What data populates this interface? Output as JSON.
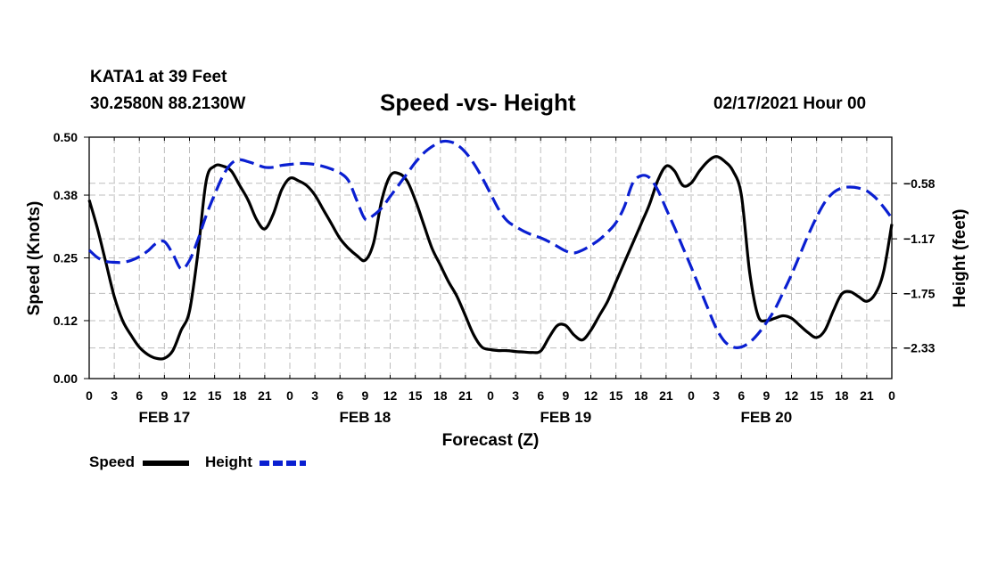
{
  "header": {
    "station": "KATA1 at 39 Feet",
    "coords": "30.2580N 88.2130W",
    "title": "Speed -vs- Height",
    "date": "02/17/2021 Hour 00"
  },
  "chart_data": {
    "type": "line",
    "title": "Speed -vs- Height",
    "xlabel": "Forecast (Z)",
    "ylabel_left": "Speed (Knots)",
    "ylabel_right": "Height (feet)",
    "x_range": [
      0,
      96
    ],
    "x_tick_step_hours": 3,
    "x_tick_labels": [
      "0",
      "3",
      "6",
      "9",
      "12",
      "15",
      "18",
      "21",
      "0",
      "3",
      "6",
      "9",
      "12",
      "15",
      "18",
      "21",
      "0",
      "3",
      "6",
      "9",
      "12",
      "15",
      "18",
      "21",
      "0",
      "3",
      "6",
      "9",
      "12",
      "15",
      "18",
      "21",
      "0"
    ],
    "date_labels": [
      {
        "label": "FEB 17",
        "hour": 9
      },
      {
        "label": "FEB 18",
        "hour": 33
      },
      {
        "label": "FEB 19",
        "hour": 57
      },
      {
        "label": "FEB 20",
        "hour": 81
      }
    ],
    "left_axis": {
      "range": [
        0,
        0.5
      ],
      "ticks": [
        0.0,
        0.12,
        0.25,
        0.38,
        0.5
      ],
      "tick_labels": [
        "0.00",
        "0.12",
        "0.25",
        "0.38",
        "0.50"
      ]
    },
    "right_axis": {
      "range": [
        -2.655,
        -0.09
      ],
      "ticks": [
        -2.33,
        -1.75,
        -1.17,
        -0.58
      ],
      "tick_labels": [
        "−2.33",
        "−1.75",
        "−1.17",
        "−0.58"
      ]
    },
    "grid": true,
    "series": [
      {
        "name": "Speed",
        "axis": "left",
        "color": "#000000",
        "dash": "solid",
        "points": [
          [
            0,
            0.37
          ],
          [
            1,
            0.31
          ],
          [
            2,
            0.24
          ],
          [
            3,
            0.17
          ],
          [
            4,
            0.12
          ],
          [
            5,
            0.09
          ],
          [
            6,
            0.065
          ],
          [
            7,
            0.05
          ],
          [
            8,
            0.042
          ],
          [
            9,
            0.042
          ],
          [
            10,
            0.058
          ],
          [
            11,
            0.1
          ],
          [
            12,
            0.14
          ],
          [
            13,
            0.26
          ],
          [
            14,
            0.41
          ],
          [
            15,
            0.44
          ],
          [
            16,
            0.44
          ],
          [
            17,
            0.43
          ],
          [
            18,
            0.4
          ],
          [
            19,
            0.37
          ],
          [
            20,
            0.33
          ],
          [
            21,
            0.31
          ],
          [
            22,
            0.34
          ],
          [
            23,
            0.39
          ],
          [
            24,
            0.415
          ],
          [
            25,
            0.41
          ],
          [
            26,
            0.4
          ],
          [
            27,
            0.38
          ],
          [
            28,
            0.35
          ],
          [
            29,
            0.32
          ],
          [
            30,
            0.29
          ],
          [
            31,
            0.27
          ],
          [
            32,
            0.255
          ],
          [
            33,
            0.245
          ],
          [
            34,
            0.28
          ],
          [
            35,
            0.37
          ],
          [
            36,
            0.42
          ],
          [
            37,
            0.425
          ],
          [
            38,
            0.41
          ],
          [
            39,
            0.37
          ],
          [
            40,
            0.32
          ],
          [
            41,
            0.27
          ],
          [
            42,
            0.235
          ],
          [
            43,
            0.2
          ],
          [
            44,
            0.17
          ],
          [
            45,
            0.13
          ],
          [
            46,
            0.09
          ],
          [
            47,
            0.065
          ],
          [
            48,
            0.06
          ],
          [
            49,
            0.058
          ],
          [
            50,
            0.058
          ],
          [
            51,
            0.056
          ],
          [
            52,
            0.055
          ],
          [
            53,
            0.054
          ],
          [
            54,
            0.057
          ],
          [
            55,
            0.085
          ],
          [
            56,
            0.11
          ],
          [
            57,
            0.11
          ],
          [
            58,
            0.09
          ],
          [
            59,
            0.08
          ],
          [
            60,
            0.1
          ],
          [
            61,
            0.13
          ],
          [
            62,
            0.16
          ],
          [
            63,
            0.2
          ],
          [
            64,
            0.24
          ],
          [
            65,
            0.28
          ],
          [
            66,
            0.32
          ],
          [
            67,
            0.36
          ],
          [
            68,
            0.41
          ],
          [
            69,
            0.44
          ],
          [
            70,
            0.43
          ],
          [
            71,
            0.4
          ],
          [
            72,
            0.405
          ],
          [
            73,
            0.43
          ],
          [
            74,
            0.45
          ],
          [
            75,
            0.46
          ],
          [
            76,
            0.45
          ],
          [
            77,
            0.43
          ],
          [
            78,
            0.38
          ],
          [
            79,
            0.22
          ],
          [
            80,
            0.13
          ],
          [
            81,
            0.12
          ],
          [
            82,
            0.125
          ],
          [
            83,
            0.13
          ],
          [
            84,
            0.125
          ],
          [
            85,
            0.11
          ],
          [
            86,
            0.095
          ],
          [
            87,
            0.085
          ],
          [
            88,
            0.1
          ],
          [
            89,
            0.14
          ],
          [
            90,
            0.175
          ],
          [
            91,
            0.18
          ],
          [
            92,
            0.17
          ],
          [
            93,
            0.16
          ],
          [
            94,
            0.175
          ],
          [
            95,
            0.22
          ],
          [
            96,
            0.32
          ]
        ]
      },
      {
        "name": "Height",
        "axis": "right",
        "color": "#0a1fd1",
        "dash": "dashed",
        "points": [
          [
            0,
            -1.29
          ],
          [
            1,
            -1.37
          ],
          [
            2,
            -1.41
          ],
          [
            3,
            -1.42
          ],
          [
            4,
            -1.42
          ],
          [
            5,
            -1.4
          ],
          [
            6,
            -1.36
          ],
          [
            7,
            -1.3
          ],
          [
            8,
            -1.22
          ],
          [
            9,
            -1.2
          ],
          [
            10,
            -1.33
          ],
          [
            11,
            -1.49
          ],
          [
            12,
            -1.4
          ],
          [
            13,
            -1.18
          ],
          [
            14,
            -0.92
          ],
          [
            15,
            -0.7
          ],
          [
            16,
            -0.5
          ],
          [
            17,
            -0.37
          ],
          [
            18,
            -0.33
          ],
          [
            19,
            -0.35
          ],
          [
            20,
            -0.38
          ],
          [
            21,
            -0.41
          ],
          [
            22,
            -0.41
          ],
          [
            23,
            -0.39
          ],
          [
            24,
            -0.38
          ],
          [
            25,
            -0.37
          ],
          [
            26,
            -0.37
          ],
          [
            27,
            -0.38
          ],
          [
            28,
            -0.4
          ],
          [
            29,
            -0.43
          ],
          [
            30,
            -0.47
          ],
          [
            31,
            -0.55
          ],
          [
            32,
            -0.76
          ],
          [
            33,
            -0.96
          ],
          [
            34,
            -0.92
          ],
          [
            35,
            -0.84
          ],
          [
            36,
            -0.72
          ],
          [
            37,
            -0.6
          ],
          [
            38,
            -0.48
          ],
          [
            39,
            -0.36
          ],
          [
            40,
            -0.26
          ],
          [
            41,
            -0.19
          ],
          [
            42,
            -0.14
          ],
          [
            43,
            -0.135
          ],
          [
            44,
            -0.17
          ],
          [
            45,
            -0.25
          ],
          [
            46,
            -0.37
          ],
          [
            47,
            -0.52
          ],
          [
            48,
            -0.69
          ],
          [
            49,
            -0.86
          ],
          [
            50,
            -0.98
          ],
          [
            51,
            -1.04
          ],
          [
            52,
            -1.09
          ],
          [
            53,
            -1.13
          ],
          [
            54,
            -1.16
          ],
          [
            55,
            -1.2
          ],
          [
            56,
            -1.25
          ],
          [
            57,
            -1.3
          ],
          [
            58,
            -1.32
          ],
          [
            59,
            -1.29
          ],
          [
            60,
            -1.24
          ],
          [
            61,
            -1.18
          ],
          [
            62,
            -1.1
          ],
          [
            63,
            -1.0
          ],
          [
            64,
            -0.83
          ],
          [
            65,
            -0.58
          ],
          [
            66,
            -0.5
          ],
          [
            67,
            -0.52
          ],
          [
            68,
            -0.65
          ],
          [
            69,
            -0.85
          ],
          [
            70,
            -1.05
          ],
          [
            71,
            -1.26
          ],
          [
            72,
            -1.47
          ],
          [
            73,
            -1.69
          ],
          [
            74,
            -1.91
          ],
          [
            75,
            -2.12
          ],
          [
            76,
            -2.26
          ],
          [
            77,
            -2.32
          ],
          [
            78,
            -2.32
          ],
          [
            79,
            -2.27
          ],
          [
            80,
            -2.18
          ],
          [
            81,
            -2.06
          ],
          [
            82,
            -1.92
          ],
          [
            83,
            -1.74
          ],
          [
            84,
            -1.55
          ],
          [
            85,
            -1.34
          ],
          [
            86,
            -1.13
          ],
          [
            87,
            -0.94
          ],
          [
            88,
            -0.78
          ],
          [
            89,
            -0.68
          ],
          [
            90,
            -0.63
          ],
          [
            91,
            -0.62
          ],
          [
            92,
            -0.63
          ],
          [
            93,
            -0.66
          ],
          [
            94,
            -0.73
          ],
          [
            95,
            -0.83
          ],
          [
            96,
            -0.95
          ]
        ]
      }
    ]
  },
  "legend": {
    "speed_label": "Speed",
    "height_label": "Height"
  }
}
